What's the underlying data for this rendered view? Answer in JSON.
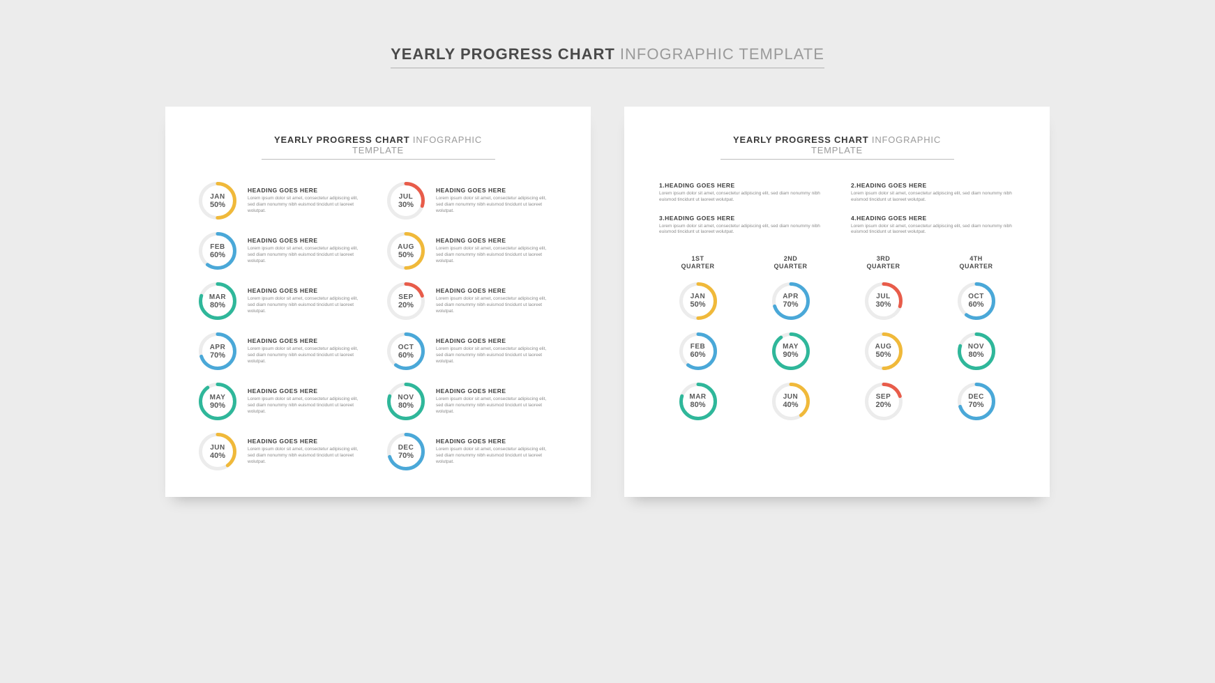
{
  "colors": {
    "track": "#ececec",
    "yellow": "#f0b93a",
    "teal": "#2fb79a",
    "blue": "#4aa8d8",
    "red": "#e85c4a"
  },
  "ring": {
    "size": 54,
    "stroke": 5
  },
  "page_title": {
    "bold": "YEARLY PROGRESS CHART",
    "light": "INFOGRAPHIC TEMPLATE"
  },
  "card_title": {
    "bold": "YEARLY PROGRESS CHART",
    "light": "INFOGRAPHIC TEMPLATE"
  },
  "placeholder": {
    "heading": "HEADING GOES HERE",
    "body": "Lorem ipsum dolor sit amet, consectetur adipiscing elit, sed diam nonummy nibh euismod tincidunt ut laoreet wolutpat."
  },
  "months": [
    {
      "abbr": "JAN",
      "pct": 50,
      "color": "yellow"
    },
    {
      "abbr": "FEB",
      "pct": 60,
      "color": "blue"
    },
    {
      "abbr": "MAR",
      "pct": 80,
      "color": "teal"
    },
    {
      "abbr": "APR",
      "pct": 70,
      "color": "blue"
    },
    {
      "abbr": "MAY",
      "pct": 90,
      "color": "teal"
    },
    {
      "abbr": "JUN",
      "pct": 40,
      "color": "yellow"
    },
    {
      "abbr": "JUL",
      "pct": 30,
      "color": "red"
    },
    {
      "abbr": "AUG",
      "pct": 50,
      "color": "yellow"
    },
    {
      "abbr": "SEP",
      "pct": 20,
      "color": "red"
    },
    {
      "abbr": "OCT",
      "pct": 60,
      "color": "blue"
    },
    {
      "abbr": "NOV",
      "pct": 80,
      "color": "teal"
    },
    {
      "abbr": "DEC",
      "pct": 70,
      "color": "blue"
    }
  ],
  "card2": {
    "headings": [
      {
        "title": "1.HEADING GOES HERE"
      },
      {
        "title": "2.HEADING GOES HERE"
      },
      {
        "title": "3.HEADING GOES HERE"
      },
      {
        "title": "4.HEADING GOES HERE"
      }
    ],
    "quarters": [
      {
        "label_top": "1ST",
        "label_bottom": "QUARTER",
        "month_idx": [
          0,
          1,
          2
        ]
      },
      {
        "label_top": "2ND",
        "label_bottom": "QUARTER",
        "month_idx": [
          3,
          4,
          5
        ]
      },
      {
        "label_top": "3RD",
        "label_bottom": "QUARTER",
        "month_idx": [
          6,
          7,
          8
        ]
      },
      {
        "label_top": "4TH",
        "label_bottom": "QUARTER",
        "month_idx": [
          9,
          10,
          11
        ]
      }
    ]
  }
}
